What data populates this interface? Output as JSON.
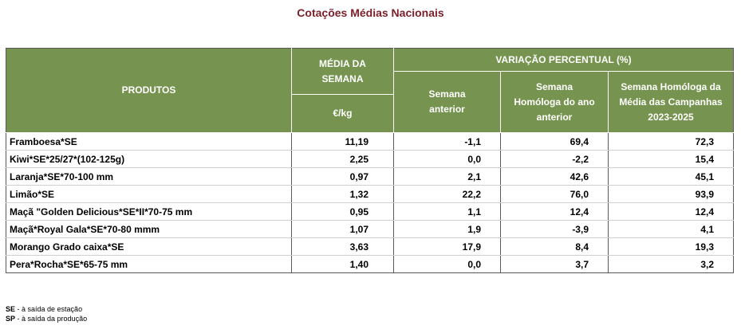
{
  "title": "Cotações Médias Nacionais",
  "headers": {
    "produtos": "PRODUTOS",
    "media_semana": "MÉDIA DA SEMANA",
    "unit": "€/kg",
    "variacao": "VARIAÇÃO PERCENTUAL (%)",
    "semana_anterior": "Semana anterior",
    "semana_homologa": "Semana Homóloga do ano anterior",
    "semana_homologa_campanhas": "Semana Homóloga da Média das Campanhas 2023-2025"
  },
  "rows": [
    {
      "produto": "Framboesa*SE",
      "media": "11,19",
      "anterior": "-1,1",
      "homologa": "69,4",
      "campanhas": "72,3"
    },
    {
      "produto": "Kiwi*SE*25/27*(102-125g)",
      "media": "2,25",
      "anterior": "0,0",
      "homologa": "-2,2",
      "campanhas": "15,4"
    },
    {
      "produto": "Laranja*SE*70-100 mm",
      "media": "0,97",
      "anterior": "2,1",
      "homologa": "42,6",
      "campanhas": "45,1"
    },
    {
      "produto": "Limão*SE",
      "media": "1,32",
      "anterior": "22,2",
      "homologa": "76,0",
      "campanhas": "93,9"
    },
    {
      "produto": "Maçã \"Golden Delicious*SE*II*70-75 mm",
      "media": "0,95",
      "anterior": "1,1",
      "homologa": "12,4",
      "campanhas": "12,4"
    },
    {
      "produto": "Maçã*Royal Gala*SE*70-80 mmm",
      "media": "1,07",
      "anterior": "1,9",
      "homologa": "-3,9",
      "campanhas": "4,1"
    },
    {
      "produto": "Morango Grado caixa*SE",
      "media": "3,63",
      "anterior": "17,9",
      "homologa": "8,4",
      "campanhas": "19,3"
    },
    {
      "produto": "Pera*Rocha*SE*65-75 mm",
      "media": "1,40",
      "anterior": "0,0",
      "homologa": "3,7",
      "campanhas": "3,2"
    }
  ],
  "notes": [
    {
      "abbr": "SE",
      "text": " - à saída de estação"
    },
    {
      "abbr": "SP",
      "text": " - à saída da produção"
    }
  ]
}
